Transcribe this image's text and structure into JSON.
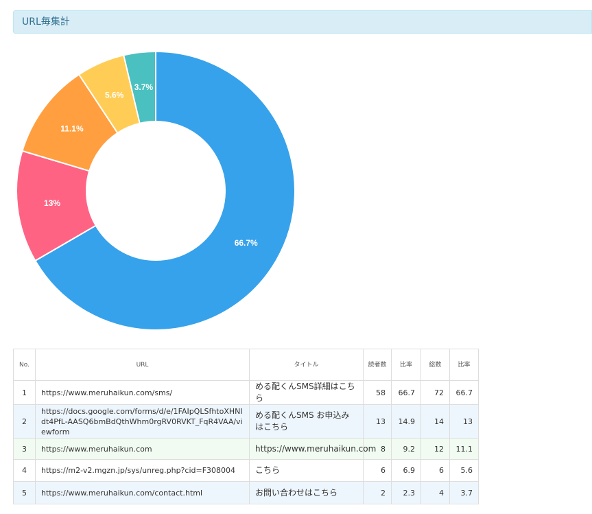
{
  "header": {
    "title": "URL毎集計"
  },
  "chart_data": {
    "type": "pie",
    "style": "doughnut",
    "values": [
      66.7,
      13,
      11.1,
      5.6,
      3.7
    ],
    "data_labels": [
      "66.7%",
      "13%",
      "11.1%",
      "5.6%",
      "3.7%"
    ],
    "colors": [
      "#36a2eb",
      "#ff6384",
      "#ff9f40",
      "#ffcd56",
      "#4bc0c0"
    ]
  },
  "table": {
    "headers": {
      "no": "No.",
      "url": "URL",
      "title": "タイトル",
      "readers": "読者数",
      "ratio1": "比率",
      "total": "総数",
      "ratio2": "比率"
    },
    "rows": [
      {
        "no": "1",
        "url": "https://www.meruhaikun.com/sms/",
        "title": "める配くんSMS詳細はこちら",
        "readers": "58",
        "ratio1": "66.7",
        "total": "72",
        "ratio2": "66.7"
      },
      {
        "no": "2",
        "url": "https://docs.google.com/forms/d/e/1FAIpQLSfhtoXHNIdt4PfL-AASQ6bmBdQthWhm0rgRV0RVKT_FqR4VAA/viewform",
        "title": "める配くんSMS お申込みはこちら",
        "readers": "13",
        "ratio1": "14.9",
        "total": "14",
        "ratio2": "13"
      },
      {
        "no": "3",
        "url": "https://www.meruhaikun.com",
        "title": "https://www.meruhaikun.com",
        "readers": "8",
        "ratio1": "9.2",
        "total": "12",
        "ratio2": "11.1"
      },
      {
        "no": "4",
        "url": "https://m2-v2.mgzn.jp/sys/unreg.php?cid=F308004",
        "title": "こちら",
        "readers": "6",
        "ratio1": "6.9",
        "total": "6",
        "ratio2": "5.6"
      },
      {
        "no": "5",
        "url": "https://www.meruhaikun.com/contact.html",
        "title": "お問い合わせはこちら",
        "readers": "2",
        "ratio1": "2.3",
        "total": "4",
        "ratio2": "3.7"
      }
    ]
  }
}
